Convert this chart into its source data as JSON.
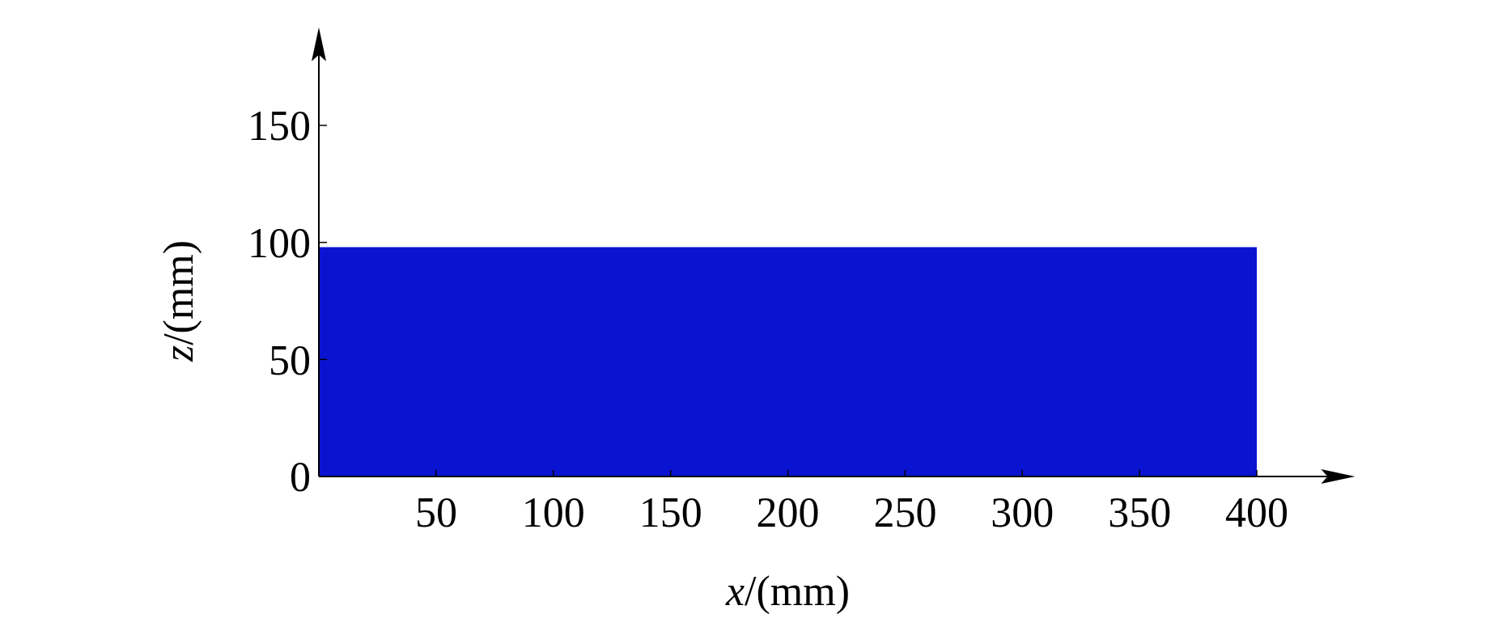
{
  "chart_data": {
    "type": "area",
    "x": [
      0,
      400
    ],
    "values": [
      98,
      98
    ],
    "color": "#0a14d0",
    "xlim": [
      0,
      435
    ],
    "ylim": [
      0,
      185
    ],
    "xticks": [
      50,
      100,
      150,
      200,
      250,
      300,
      350,
      400
    ],
    "yticks": [
      0,
      50,
      100,
      150
    ],
    "xlabel": "x/(mm)",
    "ylabel": "z/(mm)",
    "tick_labels": true
  }
}
